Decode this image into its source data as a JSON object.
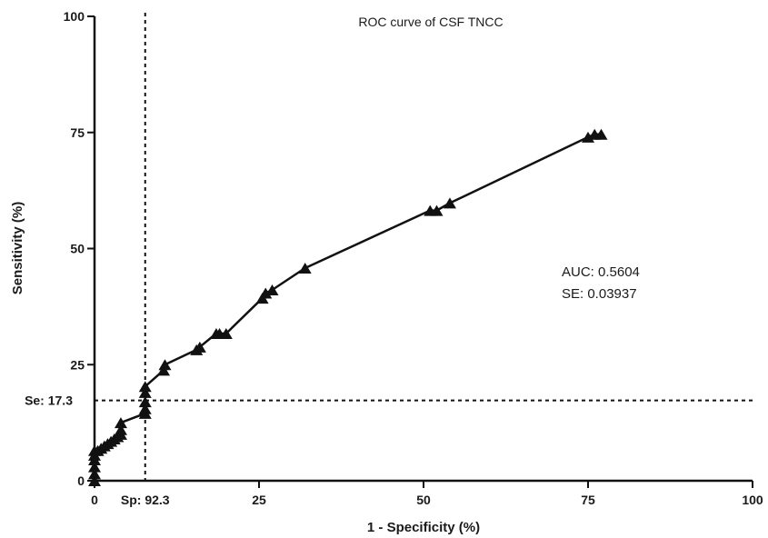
{
  "chart_data": {
    "type": "line",
    "title": "ROC curve of CSF TNCC",
    "xlabel": "1 - Specificity (%)",
    "ylabel": "Sensitivity (%)",
    "xlim": [
      0,
      100
    ],
    "ylim": [
      0,
      100
    ],
    "xticks": [
      "0",
      "25",
      "50",
      "75",
      "100"
    ],
    "yticks": [
      "0",
      "25",
      "50",
      "75",
      "100"
    ],
    "grid": false,
    "series": [
      {
        "marker": "triangle",
        "color": "#111111",
        "x": [
          0,
          0,
          0,
          0,
          0,
          0,
          0.5,
          1,
          1.5,
          2,
          2.5,
          3,
          3.5,
          4,
          4,
          4,
          7.7,
          7.7,
          7.7,
          7.7,
          7.7,
          10.5,
          10.7,
          15.5,
          16,
          18.5,
          19,
          20,
          25.5,
          26,
          27,
          32,
          51,
          52,
          54,
          75,
          76,
          77
        ],
        "y": [
          0,
          1.5,
          3,
          4.5,
          5.5,
          6.5,
          6.5,
          7,
          7.5,
          8,
          8.5,
          9,
          9.5,
          10,
          11,
          12.5,
          14.5,
          15.5,
          17,
          19,
          20.3,
          23.8,
          25,
          28.2,
          28.8,
          31.7,
          31.7,
          31.7,
          39.3,
          40.4,
          41.1,
          45.8,
          58.2,
          58.2,
          59.8,
          74,
          74.6,
          74.6
        ]
      }
    ],
    "reference_lines": {
      "vertical": {
        "x": 7.7,
        "label": "Sp: 92.3"
      },
      "horizontal": {
        "y": 17.3,
        "label": "Se: 17.3"
      }
    },
    "annotations": {
      "auc": "AUC: 0.5604",
      "se": "SE: 0.03937"
    }
  }
}
